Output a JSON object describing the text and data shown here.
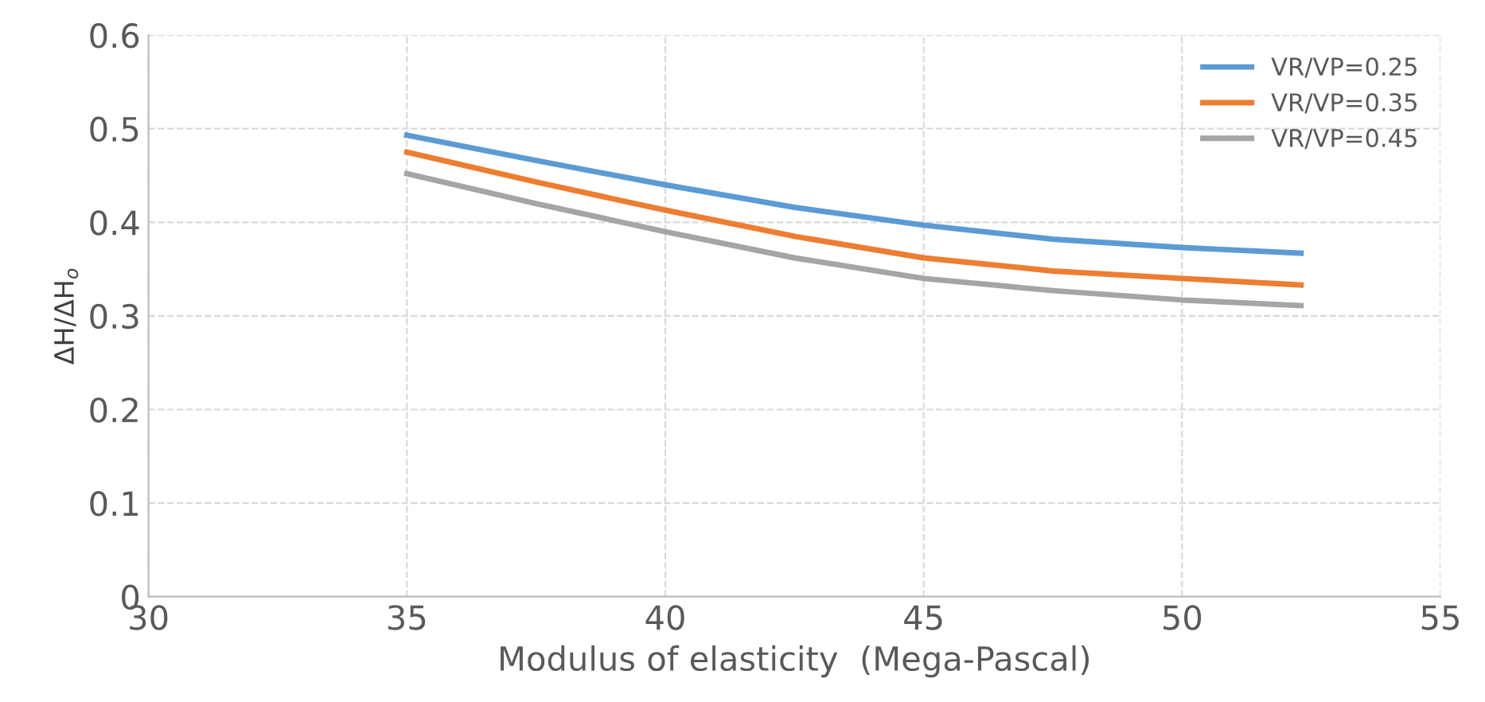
{
  "chart_data": {
    "type": "line",
    "xlabel": "Modulus of elasticity  (Mega-Pascal)",
    "ylabel": "ΔH/ΔH$_{o}$",
    "xlim": [
      30,
      55
    ],
    "xticks": [
      30,
      35,
      40,
      45,
      50,
      55
    ],
    "ylim": [
      0,
      0.6
    ],
    "yticks": [
      0,
      0.1,
      0.2,
      0.3,
      0.4,
      0.5,
      0.6
    ],
    "grid": true,
    "legend": "top right",
    "marker": "none",
    "line_style": "solid",
    "x": [
      35,
      37.5,
      40,
      42.5,
      45,
      47.5,
      50,
      52.3
    ],
    "series": [
      {
        "name": "VR/VP=0.25",
        "color": "#5b9bd5",
        "values": [
          0.493,
          0.466,
          0.44,
          0.416,
          0.397,
          0.382,
          0.373,
          0.367
        ]
      },
      {
        "name": "VR/VP=0.35",
        "color": "#ed7d31",
        "values": [
          0.475,
          0.443,
          0.413,
          0.385,
          0.362,
          0.348,
          0.34,
          0.333
        ]
      },
      {
        "name": "VR/VP=0.45",
        "color": "#a5a5a5",
        "values": [
          0.452,
          0.42,
          0.39,
          0.362,
          0.34,
          0.327,
          0.317,
          0.311
        ]
      }
    ]
  }
}
